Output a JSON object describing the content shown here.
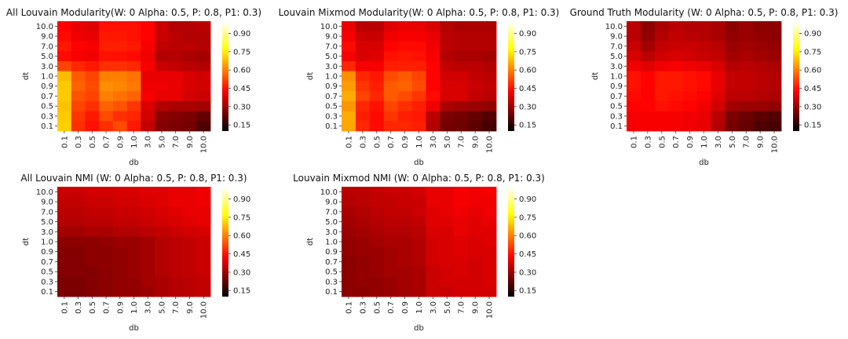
{
  "colorbar": {
    "ticks": [
      "0.15",
      "0.30",
      "0.45",
      "0.60",
      "0.75",
      "0.90"
    ],
    "tick_values": [
      0.15,
      0.3,
      0.45,
      0.6,
      0.75,
      0.9
    ],
    "vmin": 0.1,
    "vmax": 1.0,
    "colormap": "hot"
  },
  "chart_data": [
    {
      "type": "heatmap",
      "title": "All Louvain Modularity(W: 0 Alpha: 0.5, P: 0.8, P1: 0.3)",
      "xlabel": "db",
      "ylabel": "dt",
      "x": [
        "0.1",
        "0.3",
        "0.5",
        "0.7",
        "0.9",
        "1.0",
        "3.0",
        "5.0",
        "7.0",
        "9.0",
        "10.0"
      ],
      "y": [
        "10.0",
        "9.0",
        "7.0",
        "5.0",
        "3.0",
        "1.0",
        "0.9",
        "0.7",
        "0.5",
        "0.3",
        "0.1"
      ],
      "values": [
        [
          0.43,
          0.4,
          0.39,
          0.45,
          0.45,
          0.45,
          0.43,
          0.36,
          0.33,
          0.33,
          0.34
        ],
        [
          0.44,
          0.41,
          0.4,
          0.46,
          0.46,
          0.45,
          0.43,
          0.36,
          0.34,
          0.33,
          0.33
        ],
        [
          0.46,
          0.43,
          0.42,
          0.47,
          0.47,
          0.46,
          0.42,
          0.35,
          0.34,
          0.34,
          0.33
        ],
        [
          0.44,
          0.42,
          0.41,
          0.45,
          0.45,
          0.44,
          0.41,
          0.33,
          0.33,
          0.32,
          0.31
        ],
        [
          0.52,
          0.48,
          0.46,
          0.49,
          0.49,
          0.48,
          0.42,
          0.36,
          0.35,
          0.34,
          0.33
        ],
        [
          0.68,
          0.55,
          0.52,
          0.6,
          0.6,
          0.58,
          0.4,
          0.4,
          0.4,
          0.38,
          0.37
        ],
        [
          0.7,
          0.56,
          0.53,
          0.62,
          0.61,
          0.59,
          0.41,
          0.41,
          0.4,
          0.38,
          0.37
        ],
        [
          0.7,
          0.54,
          0.52,
          0.6,
          0.58,
          0.56,
          0.42,
          0.4,
          0.4,
          0.37,
          0.36
        ],
        [
          0.69,
          0.52,
          0.49,
          0.56,
          0.54,
          0.5,
          0.38,
          0.33,
          0.32,
          0.32,
          0.31
        ],
        [
          0.7,
          0.5,
          0.46,
          0.53,
          0.49,
          0.48,
          0.37,
          0.28,
          0.27,
          0.26,
          0.23
        ],
        [
          0.71,
          0.49,
          0.45,
          0.49,
          0.53,
          0.46,
          0.35,
          0.27,
          0.26,
          0.25,
          0.2
        ]
      ],
      "colorbar_ticks": [
        "0.15",
        "0.30",
        "0.45",
        "0.60",
        "0.75",
        "0.90"
      ]
    },
    {
      "type": "heatmap",
      "title": "Louvain Mixmod Modularity(W: 0 Alpha: 0.5, P: 0.8, P1: 0.3)",
      "xlabel": "db",
      "ylabel": "dt",
      "x": [
        "0.1",
        "0.3",
        "0.5",
        "0.7",
        "0.9",
        "1.0",
        "3.0",
        "5.0",
        "7.0",
        "9.0",
        "10.0"
      ],
      "y": [
        "10.0",
        "9.0",
        "7.0",
        "5.0",
        "3.0",
        "1.0",
        "0.9",
        "0.7",
        "0.5",
        "0.3",
        "0.1"
      ],
      "values": [
        [
          0.4,
          0.34,
          0.34,
          0.39,
          0.4,
          0.4,
          0.38,
          0.33,
          0.32,
          0.32,
          0.32
        ],
        [
          0.42,
          0.36,
          0.36,
          0.41,
          0.42,
          0.42,
          0.4,
          0.34,
          0.33,
          0.33,
          0.33
        ],
        [
          0.44,
          0.38,
          0.38,
          0.43,
          0.44,
          0.44,
          0.41,
          0.34,
          0.33,
          0.33,
          0.33
        ],
        [
          0.42,
          0.38,
          0.39,
          0.45,
          0.46,
          0.45,
          0.42,
          0.33,
          0.32,
          0.32,
          0.31
        ],
        [
          0.48,
          0.42,
          0.42,
          0.47,
          0.47,
          0.47,
          0.43,
          0.35,
          0.34,
          0.34,
          0.33
        ],
        [
          0.62,
          0.48,
          0.46,
          0.53,
          0.55,
          0.52,
          0.43,
          0.37,
          0.37,
          0.35,
          0.34
        ],
        [
          0.64,
          0.5,
          0.47,
          0.55,
          0.56,
          0.53,
          0.43,
          0.38,
          0.38,
          0.36,
          0.35
        ],
        [
          0.66,
          0.52,
          0.48,
          0.55,
          0.53,
          0.5,
          0.44,
          0.38,
          0.38,
          0.35,
          0.34
        ],
        [
          0.63,
          0.48,
          0.45,
          0.52,
          0.49,
          0.47,
          0.41,
          0.32,
          0.31,
          0.3,
          0.29
        ],
        [
          0.66,
          0.47,
          0.44,
          0.5,
          0.47,
          0.46,
          0.34,
          0.26,
          0.25,
          0.23,
          0.21
        ],
        [
          0.65,
          0.48,
          0.44,
          0.48,
          0.48,
          0.47,
          0.33,
          0.25,
          0.24,
          0.22,
          0.19
        ]
      ],
      "colorbar_ticks": [
        "0.15",
        "0.30",
        "0.45",
        "0.60",
        "0.75",
        "0.90"
      ]
    },
    {
      "type": "heatmap",
      "title": "Ground Truth Modularity (W: 0 Alpha: 0.5, P: 0.8, P1: 0.3)",
      "xlabel": "db",
      "ylabel": "dt",
      "x": [
        "0.1",
        "0.3",
        "0.5",
        "0.7",
        "0.9",
        "1.0",
        "3.0",
        "5.0",
        "7.0",
        "9.0",
        "10.0"
      ],
      "y": [
        "10.0",
        "9.0",
        "7.0",
        "5.0",
        "3.0",
        "1.0",
        "0.9",
        "0.7",
        "0.5",
        "0.3",
        "0.1"
      ],
      "values": [
        [
          0.34,
          0.28,
          0.32,
          0.34,
          0.33,
          0.33,
          0.32,
          0.28,
          0.3,
          0.28,
          0.28
        ],
        [
          0.34,
          0.29,
          0.33,
          0.35,
          0.34,
          0.33,
          0.32,
          0.29,
          0.3,
          0.29,
          0.28
        ],
        [
          0.36,
          0.31,
          0.35,
          0.36,
          0.36,
          0.35,
          0.34,
          0.3,
          0.31,
          0.3,
          0.29
        ],
        [
          0.38,
          0.34,
          0.37,
          0.38,
          0.37,
          0.36,
          0.35,
          0.31,
          0.32,
          0.31,
          0.3
        ],
        [
          0.41,
          0.39,
          0.41,
          0.42,
          0.41,
          0.4,
          0.38,
          0.33,
          0.34,
          0.33,
          0.32
        ],
        [
          0.45,
          0.43,
          0.46,
          0.46,
          0.45,
          0.44,
          0.4,
          0.35,
          0.35,
          0.34,
          0.33
        ],
        [
          0.45,
          0.43,
          0.46,
          0.46,
          0.45,
          0.44,
          0.4,
          0.35,
          0.35,
          0.34,
          0.33
        ],
        [
          0.44,
          0.43,
          0.46,
          0.45,
          0.44,
          0.43,
          0.39,
          0.34,
          0.34,
          0.33,
          0.32
        ],
        [
          0.43,
          0.43,
          0.45,
          0.44,
          0.43,
          0.41,
          0.37,
          0.31,
          0.3,
          0.3,
          0.29
        ],
        [
          0.42,
          0.42,
          0.42,
          0.42,
          0.41,
          0.4,
          0.34,
          0.26,
          0.24,
          0.22,
          0.21
        ],
        [
          0.42,
          0.42,
          0.42,
          0.42,
          0.41,
          0.4,
          0.33,
          0.25,
          0.23,
          0.2,
          0.19
        ]
      ],
      "colorbar_ticks": [
        "0.15",
        "0.30",
        "0.45",
        "0.60",
        "0.75",
        "0.90"
      ]
    },
    {
      "type": "heatmap",
      "title": "All Louvain NMI (W: 0 Alpha: 0.5, P: 0.8, P1: 0.3)",
      "xlabel": "db",
      "ylabel": "dt",
      "x": [
        "0.1",
        "0.3",
        "0.5",
        "0.7",
        "0.9",
        "1.0",
        "3.0",
        "5.0",
        "7.0",
        "9.0",
        "10.0"
      ],
      "y": [
        "10.0",
        "9.0",
        "7.0",
        "5.0",
        "3.0",
        "1.0",
        "0.9",
        "0.7",
        "0.5",
        "0.3",
        "0.1"
      ],
      "values": [
        [
          0.36,
          0.36,
          0.37,
          0.37,
          0.38,
          0.38,
          0.39,
          0.39,
          0.4,
          0.4,
          0.41
        ],
        [
          0.35,
          0.35,
          0.36,
          0.36,
          0.37,
          0.37,
          0.38,
          0.39,
          0.4,
          0.4,
          0.41
        ],
        [
          0.34,
          0.34,
          0.35,
          0.35,
          0.36,
          0.36,
          0.37,
          0.38,
          0.39,
          0.4,
          0.4
        ],
        [
          0.33,
          0.33,
          0.34,
          0.34,
          0.35,
          0.35,
          0.36,
          0.37,
          0.38,
          0.39,
          0.4
        ],
        [
          0.31,
          0.31,
          0.32,
          0.32,
          0.33,
          0.33,
          0.34,
          0.35,
          0.36,
          0.37,
          0.38
        ],
        [
          0.28,
          0.28,
          0.28,
          0.29,
          0.3,
          0.3,
          0.31,
          0.33,
          0.34,
          0.35,
          0.36
        ],
        [
          0.27,
          0.27,
          0.28,
          0.28,
          0.29,
          0.3,
          0.31,
          0.33,
          0.34,
          0.35,
          0.36
        ],
        [
          0.27,
          0.27,
          0.28,
          0.28,
          0.29,
          0.3,
          0.31,
          0.33,
          0.34,
          0.35,
          0.36
        ],
        [
          0.27,
          0.27,
          0.27,
          0.28,
          0.29,
          0.3,
          0.31,
          0.33,
          0.34,
          0.35,
          0.36
        ],
        [
          0.26,
          0.26,
          0.27,
          0.28,
          0.29,
          0.29,
          0.31,
          0.32,
          0.33,
          0.34,
          0.35
        ],
        [
          0.26,
          0.26,
          0.27,
          0.28,
          0.29,
          0.29,
          0.3,
          0.32,
          0.33,
          0.34,
          0.35
        ]
      ],
      "colorbar_ticks": [
        "0.15",
        "0.30",
        "0.45",
        "0.60",
        "0.75",
        "0.90"
      ]
    },
    {
      "type": "heatmap",
      "title": "Louvain Mixmod NMI (W: 0 Alpha: 0.5, P: 0.8, P1: 0.3)",
      "xlabel": "db",
      "ylabel": "dt",
      "x": [
        "0.1",
        "0.3",
        "0.5",
        "0.7",
        "0.9",
        "1.0",
        "3.0",
        "5.0",
        "7.0",
        "9.0",
        "10.0"
      ],
      "y": [
        "10.0",
        "9.0",
        "7.0",
        "5.0",
        "3.0",
        "1.0",
        "0.9",
        "0.7",
        "0.5",
        "0.3",
        "0.1"
      ],
      "values": [
        [
          0.34,
          0.34,
          0.35,
          0.36,
          0.36,
          0.37,
          0.4,
          0.4,
          0.42,
          0.41,
          0.42
        ],
        [
          0.33,
          0.34,
          0.35,
          0.35,
          0.36,
          0.36,
          0.4,
          0.4,
          0.42,
          0.41,
          0.41
        ],
        [
          0.32,
          0.33,
          0.34,
          0.35,
          0.35,
          0.36,
          0.39,
          0.4,
          0.41,
          0.4,
          0.41
        ],
        [
          0.31,
          0.32,
          0.33,
          0.34,
          0.34,
          0.35,
          0.39,
          0.39,
          0.4,
          0.39,
          0.4
        ],
        [
          0.3,
          0.31,
          0.32,
          0.33,
          0.33,
          0.34,
          0.38,
          0.38,
          0.4,
          0.39,
          0.39
        ],
        [
          0.29,
          0.3,
          0.31,
          0.32,
          0.32,
          0.33,
          0.37,
          0.38,
          0.39,
          0.38,
          0.39
        ],
        [
          0.29,
          0.3,
          0.3,
          0.31,
          0.32,
          0.33,
          0.37,
          0.38,
          0.39,
          0.38,
          0.38
        ],
        [
          0.28,
          0.29,
          0.3,
          0.31,
          0.32,
          0.33,
          0.37,
          0.38,
          0.38,
          0.37,
          0.38
        ],
        [
          0.28,
          0.29,
          0.3,
          0.31,
          0.31,
          0.32,
          0.36,
          0.37,
          0.38,
          0.37,
          0.38
        ],
        [
          0.28,
          0.29,
          0.29,
          0.3,
          0.31,
          0.32,
          0.36,
          0.37,
          0.37,
          0.37,
          0.38
        ],
        [
          0.28,
          0.28,
          0.29,
          0.3,
          0.31,
          0.32,
          0.36,
          0.36,
          0.37,
          0.37,
          0.37
        ]
      ],
      "colorbar_ticks": [
        "0.15",
        "0.30",
        "0.45",
        "0.60",
        "0.75",
        "0.90"
      ]
    }
  ]
}
